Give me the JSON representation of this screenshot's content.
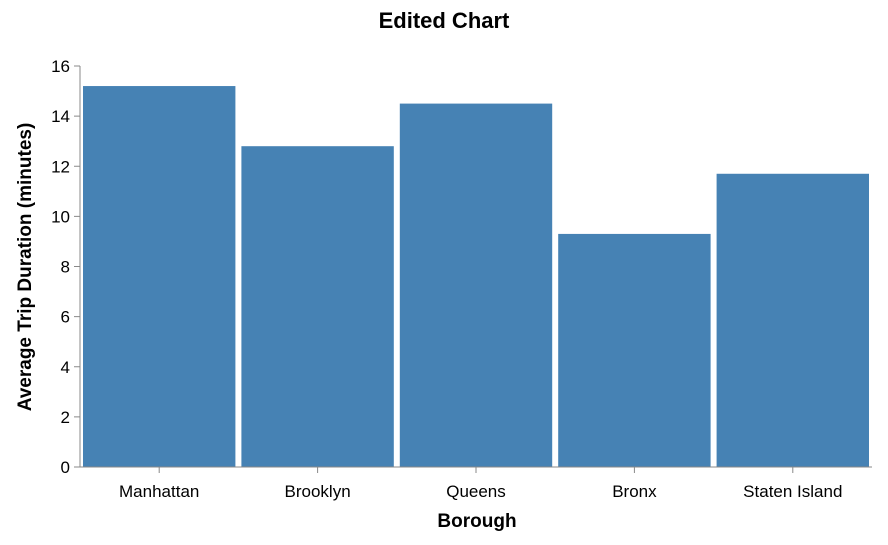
{
  "chart_data": {
    "type": "bar",
    "title": "Edited Chart",
    "xlabel": "Borough",
    "ylabel": "Average Trip Duration (minutes)",
    "categories": [
      "Manhattan",
      "Brooklyn",
      "Queens",
      "Bronx",
      "Staten Island"
    ],
    "values": [
      15.2,
      12.8,
      14.5,
      9.3,
      11.7
    ],
    "ylim": [
      0,
      16
    ],
    "yticks": [
      0,
      2,
      4,
      6,
      8,
      10,
      12,
      14,
      16
    ],
    "grid": false,
    "bar_color": "#4682b4",
    "axis_color": "#888888"
  }
}
